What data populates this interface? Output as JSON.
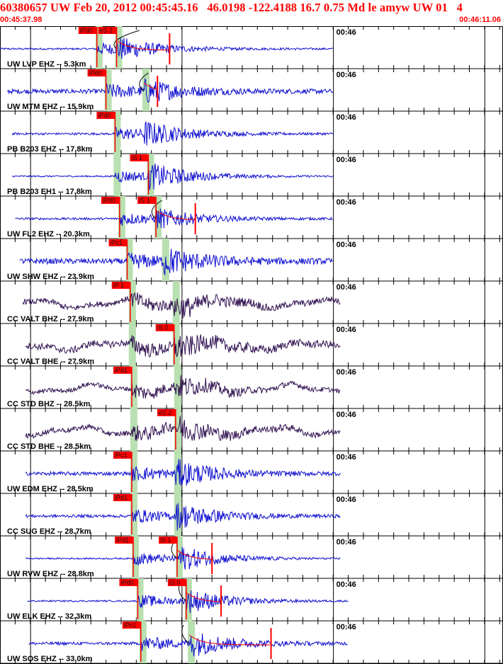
{
  "header": {
    "title": "60380657 UW Feb 20, 2012 00:45:45.16   46.0198 -122.4188 16.7 0.75 Md le amyw UW 01   4",
    "start_time": "00:45:37.98",
    "end_time": "00:46:11.06"
  },
  "chart_data": {
    "type": "waveform",
    "x_start": "00:45:37.98",
    "x_end": "00:46:11.06",
    "tick_label": "00:46",
    "colors": {
      "pick_fill": "#ff0000",
      "window_fill": "#b8e0b0",
      "vertical_trace": "#1010d0",
      "horizontal_trace": "#301050",
      "coda_fit": "#ff0000",
      "grid": "#000000"
    },
    "traces": [
      {
        "label": "UW LVP EHZ -- 5.3km",
        "p_pick": "iPd0",
        "s_pick": "eS 2",
        "p_time": 6.4,
        "s_time": 7.7,
        "coda_end": 11.2,
        "signal_start": 0.0,
        "signal_end": 22.0,
        "amp": 0.7,
        "noise": 0.05,
        "color": "vertical"
      },
      {
        "label": "UW MTM EHZ -- 15.9km",
        "p_pick": "iPd0",
        "s_pick": "",
        "p_time": 7.0,
        "s_time": 9.5,
        "coda_end": 10.4,
        "signal_start": 0.5,
        "signal_end": 22.0,
        "amp": 0.65,
        "noise": 0.12,
        "color": "vertical"
      },
      {
        "label": "PB B203 EHZ -- 17.8km",
        "p_pick": "iPd0",
        "s_pick": "",
        "p_time": 7.6,
        "s_time": 9.5,
        "coda_end": 0,
        "signal_start": 0.8,
        "signal_end": 22.0,
        "amp": 0.75,
        "noise": 0.06,
        "color": "vertical"
      },
      {
        "label": "PB B203 EH1 -- 17.8km",
        "p_pick": "",
        "s_pick": "iS 1",
        "p_time": 7.6,
        "s_time": 9.8,
        "coda_end": 0,
        "signal_start": 0.8,
        "signal_end": 22.0,
        "amp": 0.8,
        "noise": 0.04,
        "color": "vertical"
      },
      {
        "label": "UW FL2 EHZ -- 20.3km",
        "p_pick": "iPd0",
        "s_pick": "iS 1",
        "p_time": 7.9,
        "s_time": 10.3,
        "coda_end": 12.9,
        "signal_start": 1.0,
        "signal_end": 22.0,
        "amp": 0.6,
        "noise": 0.06,
        "color": "vertical"
      },
      {
        "label": "UW SHW EHZ -- 23.9km",
        "p_pick": "iPc1",
        "s_pick": "",
        "p_time": 8.4,
        "s_time": 10.8,
        "coda_end": 0,
        "signal_start": 1.3,
        "signal_end": 22.0,
        "amp": 0.75,
        "noise": 0.15,
        "color": "vertical"
      },
      {
        "label": "CC VALT BHZ -- 27.9km",
        "p_pick": "iP 1",
        "s_pick": "",
        "p_time": 8.6,
        "s_time": 11.5,
        "coda_end": 0,
        "signal_start": 1.5,
        "signal_end": 22.5,
        "amp": 0.6,
        "noise": 0.15,
        "color": "horizontal"
      },
      {
        "label": "CC VALT BHE -- 27.9km",
        "p_pick": "",
        "s_pick": "iS 0",
        "p_time": 8.6,
        "s_time": 11.5,
        "coda_end": 0,
        "signal_start": 1.7,
        "signal_end": 22.5,
        "amp": 0.6,
        "noise": 0.18,
        "color": "horizontal"
      },
      {
        "label": "CC STD BHZ -- 28.5km",
        "p_pick": "iPd1",
        "s_pick": "",
        "p_time": 8.7,
        "s_time": 11.6,
        "coda_end": 0,
        "signal_start": 1.7,
        "signal_end": 22.5,
        "amp": 0.6,
        "noise": 0.12,
        "color": "horizontal"
      },
      {
        "label": "CC STD BHE -- 28.5km",
        "p_pick": "",
        "s_pick": "eS 2",
        "p_time": 8.7,
        "s_time": 11.6,
        "coda_end": 0,
        "signal_start": 1.7,
        "signal_end": 22.5,
        "amp": 0.65,
        "noise": 0.14,
        "color": "horizontal"
      },
      {
        "label": "UW EDM EHZ -- 28.5km",
        "p_pick": "iPc1",
        "s_pick": "",
        "p_time": 8.7,
        "s_time": 11.6,
        "coda_end": 0,
        "signal_start": 1.7,
        "signal_end": 22.5,
        "amp": 0.75,
        "noise": 0.1,
        "color": "vertical"
      },
      {
        "label": "CC SUG EHZ -- 28.7km",
        "p_pick": "iPd1",
        "s_pick": "",
        "p_time": 8.7,
        "s_time": 11.6,
        "coda_end": 0,
        "signal_start": 1.7,
        "signal_end": 22.5,
        "amp": 0.75,
        "noise": 0.08,
        "color": "vertical"
      },
      {
        "label": "UW RVW EHZ -- 28.8km",
        "p_pick": "iPd1",
        "s_pick": "iS 1",
        "p_time": 8.8,
        "s_time": 11.7,
        "coda_end": 14.0,
        "signal_start": 1.7,
        "signal_end": 22.5,
        "amp": 0.75,
        "noise": 0.04,
        "color": "vertical"
      },
      {
        "label": "UW ELK EHZ -- 32.3km",
        "p_pick": "iPd0",
        "s_pick": "iS 0",
        "p_time": 9.1,
        "s_time": 12.3,
        "coda_end": 14.6,
        "signal_start": 1.8,
        "signal_end": 23.0,
        "amp": 0.7,
        "noise": 0.04,
        "color": "vertical"
      },
      {
        "label": "UW SOS EHZ -- 33.0km",
        "p_pick": "iPc1",
        "s_pick": "",
        "p_time": 9.3,
        "s_time": 12.5,
        "coda_end": 17.9,
        "signal_start": 1.9,
        "signal_end": 23.0,
        "amp": 0.75,
        "noise": 0.08,
        "color": "vertical"
      }
    ]
  }
}
